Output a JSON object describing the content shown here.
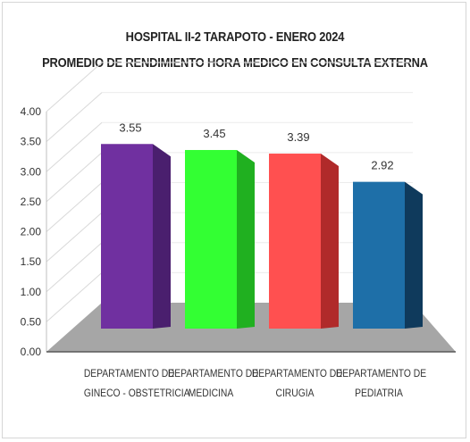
{
  "chart_data": {
    "type": "bar",
    "title": "HOSPITAL II-2 TARAPOTO - ENERO 2024",
    "subtitle": "PROMEDIO DE RENDIMIENTO HORA MEDICO EN CONSULTA EXTERNA",
    "categories": [
      [
        "DEPARTAMENTO DE",
        "GINECO - OBSTETRICIA"
      ],
      [
        "DEPARTAMENTO DE",
        "MEDICINA"
      ],
      [
        "DEPARTAMENTO DE",
        "CIRUGIA"
      ],
      [
        "DEPARTAMENTO DE",
        "PEDIATRIA"
      ]
    ],
    "values": [
      3.55,
      3.45,
      3.39,
      2.92
    ],
    "value_labels": [
      "3.55",
      "3.45",
      "3.39",
      "2.92"
    ],
    "colors": [
      "#7030a0",
      "#33ff33",
      "#ff5050",
      "#1e6fa8"
    ],
    "side_colors": [
      "#4a1f6e",
      "#20b020",
      "#b02a2a",
      "#0f3a5c"
    ],
    "ylim": [
      0,
      4
    ],
    "yticks": [
      "0.00",
      "0.50",
      "1.00",
      "1.50",
      "2.00",
      "2.50",
      "3.00",
      "3.50",
      "4.00"
    ],
    "style": "3d-bar",
    "floor_color": "#a6a6a6"
  }
}
